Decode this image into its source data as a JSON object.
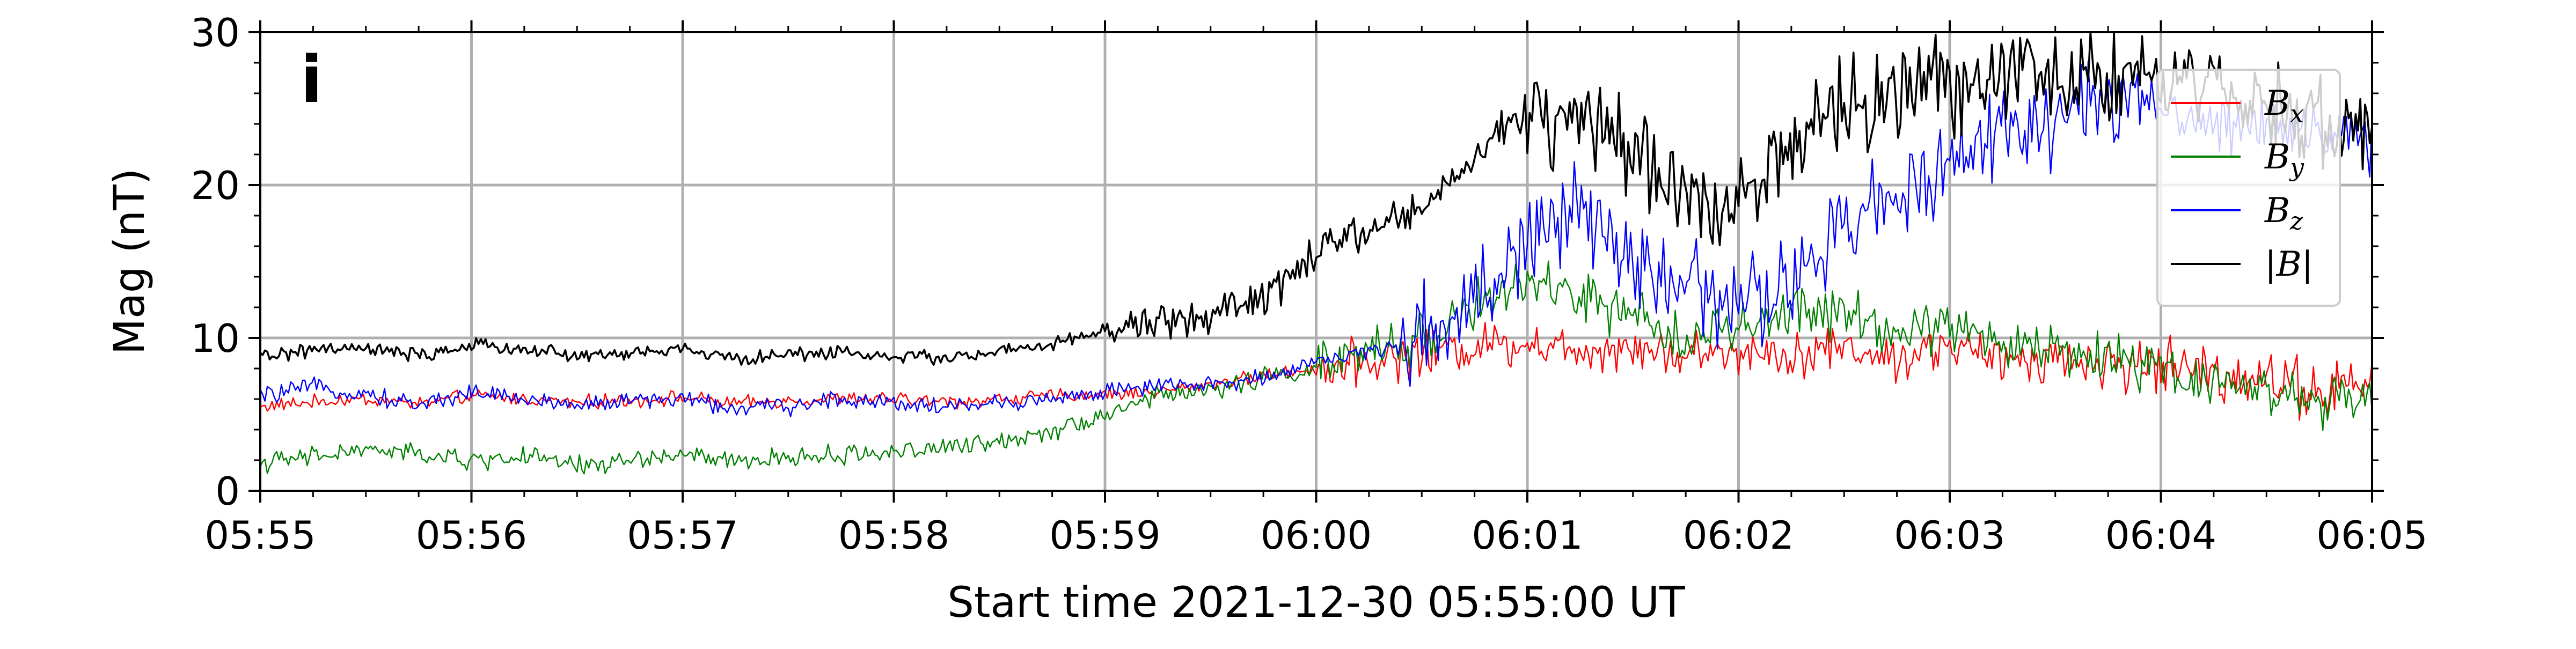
{
  "chart_data": {
    "type": "line",
    "panel_label": "i",
    "xlabel": "Start time 2021-12-30 05:55:00 UT",
    "ylabel": "Mag (nT)",
    "x_unit": "minutes after 05:55:00 UT",
    "xlim": [
      0,
      10
    ],
    "ylim": [
      0,
      30
    ],
    "x_ticks": [
      0,
      1,
      2,
      3,
      4,
      5,
      6,
      7,
      8,
      9,
      10
    ],
    "x_tick_labels": [
      "05:55",
      "05:56",
      "05:57",
      "05:58",
      "05:59",
      "06:00",
      "06:01",
      "06:02",
      "06:03",
      "06:04",
      "06:05"
    ],
    "y_ticks": [
      0,
      10,
      20,
      30
    ],
    "y_tick_labels": [
      "0",
      "10",
      "20",
      "30"
    ],
    "grid": true,
    "legend_position": "top-right",
    "x": [
      0,
      0.25,
      0.5,
      0.75,
      1,
      1.25,
      1.5,
      1.75,
      2,
      2.25,
      2.5,
      2.75,
      3,
      3.25,
      3.5,
      3.75,
      4,
      4.25,
      4.5,
      4.75,
      5,
      5.25,
      5.5,
      5.75,
      6,
      6.25,
      6.5,
      6.75,
      7,
      7.25,
      7.5,
      7.75,
      8,
      8.25,
      8.5,
      8.75,
      9,
      9.25,
      9.5,
      9.75,
      10
    ],
    "series": [
      {
        "name": "Bx",
        "label_main": "B",
        "label_sub": "x",
        "color": "#ff0000",
        "values": [
          5.5,
          5.8,
          6.0,
          5.7,
          6.2,
          6.0,
          5.8,
          5.9,
          6.1,
          5.7,
          5.9,
          6.0,
          6.0,
          5.8,
          6.0,
          6.2,
          6.3,
          6.5,
          7.0,
          7.5,
          8.0,
          8.5,
          9.0,
          9.5,
          9.8,
          9.2,
          9.5,
          8.8,
          9.2,
          9.0,
          9.4,
          8.6,
          9.5,
          8.4,
          8.8,
          8.2,
          8.2,
          7.8,
          7.4,
          6.5,
          7.0
        ]
      },
      {
        "name": "By",
        "label_main": "B",
        "label_sub": "y",
        "color": "#008000",
        "values": [
          1.8,
          2.2,
          2.7,
          2.4,
          1.9,
          2.3,
          1.6,
          2.0,
          2.4,
          1.8,
          2.2,
          2.3,
          2.6,
          2.8,
          3.2,
          4.0,
          5.0,
          6.2,
          6.6,
          7.4,
          8.0,
          9.0,
          10.0,
          12.0,
          13.5,
          12.8,
          11.2,
          10.2,
          10.5,
          11.5,
          11.8,
          10.2,
          11.0,
          9.6,
          9.2,
          8.6,
          8.2,
          7.2,
          6.6,
          5.8,
          5.8
        ]
      },
      {
        "name": "Bz",
        "label_main": "B",
        "label_sub": "z",
        "color": "#0000ff",
        "values": [
          6.2,
          6.8,
          6.3,
          5.6,
          6.5,
          6.0,
          5.6,
          5.9,
          6.0,
          5.4,
          5.5,
          6.0,
          5.8,
          5.5,
          5.7,
          6.0,
          6.5,
          6.8,
          6.9,
          7.4,
          8.5,
          9.0,
          10.0,
          12.5,
          16.5,
          18.0,
          15.0,
          13.5,
          12.0,
          13.5,
          17.0,
          19.5,
          22.0,
          23.5,
          24.5,
          25.5,
          25.0,
          24.0,
          24.2,
          23.5,
          22.5
        ]
      },
      {
        "name": "|B|",
        "label_main": "|B|",
        "label_sub": "",
        "color": "#000000",
        "values": [
          8.8,
          9.2,
          9.3,
          8.8,
          9.5,
          9.3,
          8.8,
          9.0,
          9.3,
          8.6,
          8.9,
          9.1,
          8.8,
          8.7,
          9.1,
          9.5,
          10.5,
          11.0,
          11.5,
          12.5,
          15.5,
          17.0,
          18.5,
          22.0,
          24.5,
          24.0,
          22.0,
          19.0,
          19.5,
          22.5,
          25.0,
          26.0,
          26.5,
          27.5,
          27.0,
          27.5,
          26.5,
          26.0,
          25.0,
          24.2,
          23.8
        ]
      }
    ]
  }
}
